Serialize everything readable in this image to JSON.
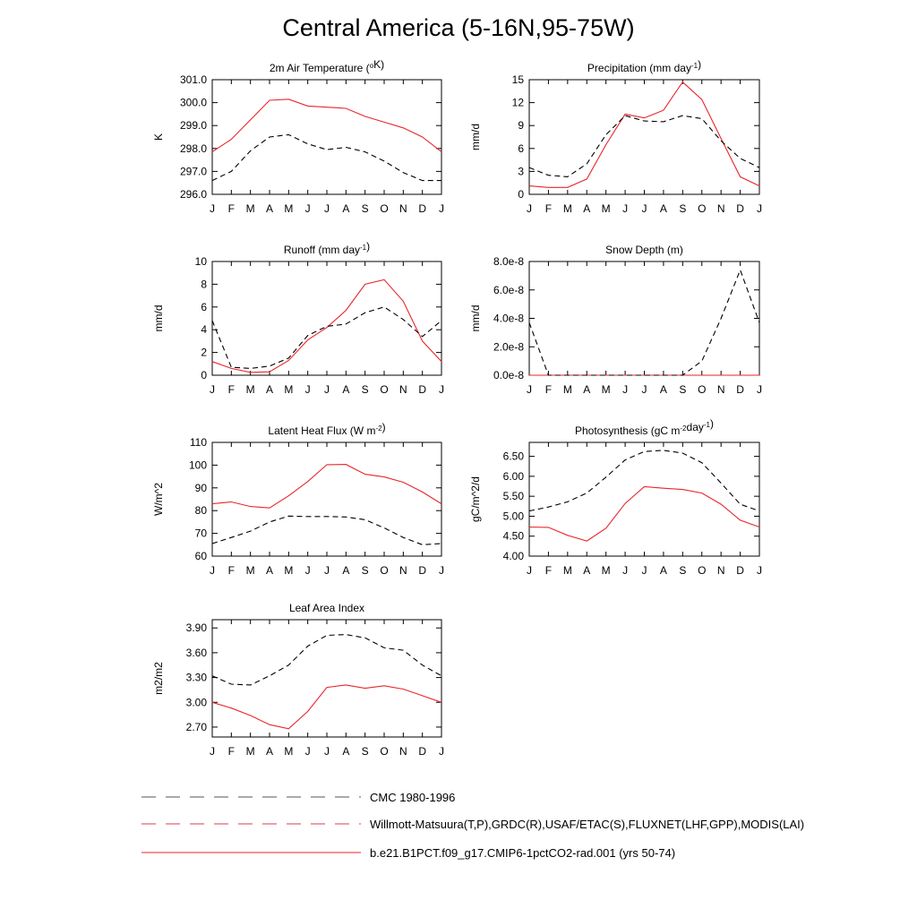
{
  "page": {
    "title": "Central America (5-16N,95-75W)"
  },
  "months": [
    "J",
    "F",
    "M",
    "A",
    "M",
    "J",
    "J",
    "A",
    "S",
    "O",
    "N",
    "D",
    "J"
  ],
  "legend": {
    "items": [
      {
        "label": "CMC 1980-1996",
        "style": "dashed",
        "color": "#000000"
      },
      {
        "label": "Willmott-Matsuura(T,P),GRDC(R),USAF/ETAC(S),FLUXNET(LHF,GPP),MODIS(LAI)",
        "style": "dashed",
        "color": "#000000"
      },
      {
        "label": "b.e21.B1PCT.f09_g17.CMIP6-1pctCO2-rad.001 (yrs 50-74)",
        "style": "solid",
        "color": "#e8262b"
      }
    ]
  },
  "colors": {
    "model": "#e8262b",
    "obs": "#000000"
  },
  "chart_data": [
    {
      "type": "line",
      "title": "2m Air Temperature (",
      "title_sup": "o",
      "title_after": "K)",
      "ylabel": "K",
      "ylim": [
        296.0,
        301.0
      ],
      "yticks": [
        "296.0",
        "297.0",
        "298.0",
        "299.0",
        "300.0",
        "301.0"
      ],
      "ytick_values": [
        296.0,
        297.0,
        298.0,
        299.0,
        300.0,
        301.0
      ],
      "series": [
        {
          "values": [
            297.85,
            298.4,
            299.25,
            300.1,
            300.15,
            299.85,
            299.8,
            299.75,
            299.4,
            299.15,
            298.9,
            298.5,
            297.85
          ],
          "style": "solid"
        },
        {
          "values": [
            296.6,
            297.0,
            297.9,
            298.5,
            298.6,
            298.2,
            297.95,
            298.05,
            297.85,
            297.45,
            296.95,
            296.6,
            296.6
          ],
          "style": "dashed"
        }
      ]
    },
    {
      "type": "line",
      "title": "Precipitation (mm day",
      "title_sup": "-1",
      "title_after": ")",
      "ylabel": "mm/d",
      "ylim": [
        0,
        15
      ],
      "yticks": [
        "0",
        "3",
        "6",
        "9",
        "12",
        "15"
      ],
      "ytick_values": [
        0,
        3,
        6,
        9,
        12,
        15
      ],
      "series": [
        {
          "values": [
            1.1,
            0.9,
            0.9,
            2.0,
            6.5,
            10.5,
            10.0,
            11.0,
            14.7,
            12.4,
            7.3,
            2.3,
            1.1
          ],
          "style": "solid"
        },
        {
          "values": [
            3.5,
            2.5,
            2.3,
            4.0,
            7.8,
            10.3,
            9.6,
            9.5,
            10.3,
            9.9,
            7.0,
            4.7,
            3.5
          ],
          "style": "dashed"
        }
      ]
    },
    {
      "type": "line",
      "title": "Runoff (mm day",
      "title_sup": "-1",
      "title_after": ")",
      "ylabel": "mm/d",
      "ylim": [
        0,
        10
      ],
      "yticks": [
        "0",
        "2",
        "4",
        "6",
        "8",
        "10"
      ],
      "ytick_values": [
        0,
        2,
        4,
        6,
        8,
        10
      ],
      "series": [
        {
          "values": [
            1.2,
            0.6,
            0.25,
            0.3,
            1.3,
            3.1,
            4.2,
            5.7,
            8.0,
            8.4,
            6.5,
            3.0,
            1.2
          ],
          "style": "solid"
        },
        {
          "values": [
            4.8,
            0.7,
            0.6,
            0.8,
            1.5,
            3.5,
            4.3,
            4.5,
            5.5,
            6.0,
            4.9,
            3.4,
            4.8
          ],
          "style": "dashed"
        }
      ]
    },
    {
      "type": "line",
      "title": "Snow Depth (m)",
      "title_sup": "",
      "title_after": "",
      "ylabel": "mm/d",
      "ylim": [
        0,
        8e-08
      ],
      "yticks": [
        "0.0e-8",
        "2.0e-8",
        "4.0e-8",
        "6.0e-8",
        "8.0e-8"
      ],
      "ytick_values": [
        0,
        2e-08,
        4e-08,
        6e-08,
        8e-08
      ],
      "series": [
        {
          "values": [
            0,
            0,
            0,
            0,
            0,
            0,
            0,
            0,
            0,
            0,
            0,
            0,
            0
          ],
          "style": "solid"
        },
        {
          "values": [
            3.7e-08,
            0,
            0,
            0,
            0,
            0,
            0,
            0,
            0,
            1e-08,
            4e-08,
            7.4e-08,
            3.7e-08
          ],
          "style": "dashed"
        }
      ]
    },
    {
      "type": "line",
      "title": "Latent Heat Flux (W m",
      "title_sup": "-2",
      "title_after": ")",
      "ylabel": "W/m^2",
      "ylim": [
        60,
        110
      ],
      "yticks": [
        "60",
        "70",
        "80",
        "90",
        "100",
        "110"
      ],
      "ytick_values": [
        60,
        70,
        80,
        90,
        100,
        110
      ],
      "series": [
        {
          "values": [
            83,
            83.8,
            81.8,
            81.2,
            86.5,
            92.8,
            100.2,
            100.3,
            96,
            94.8,
            92.5,
            88.2,
            83
          ],
          "style": "solid"
        },
        {
          "values": [
            65.5,
            68.2,
            71,
            75,
            77.6,
            77.4,
            77.4,
            77.2,
            76,
            72.4,
            68.2,
            65,
            65.5
          ],
          "style": "dashed"
        }
      ]
    },
    {
      "type": "line",
      "title": "Photosynthesis (gC m",
      "title_sup": "-2",
      "title_after": "day",
      "title_sup2": "-1",
      "title_after2": ")",
      "ylabel": "gC/m^2/d",
      "ylim": [
        4.0,
        6.85
      ],
      "yticks": [
        "4.00",
        "4.50",
        "5.00",
        "5.50",
        "6.00",
        "6.50"
      ],
      "ytick_values": [
        4.0,
        4.5,
        5.0,
        5.5,
        6.0,
        6.5
      ],
      "series": [
        {
          "values": [
            4.73,
            4.72,
            4.52,
            4.38,
            4.7,
            5.32,
            5.74,
            5.7,
            5.67,
            5.58,
            5.3,
            4.9,
            4.73
          ],
          "style": "solid"
        },
        {
          "values": [
            5.13,
            5.23,
            5.36,
            5.58,
            5.98,
            6.41,
            6.62,
            6.65,
            6.58,
            6.34,
            5.83,
            5.3,
            5.13
          ],
          "style": "dashed"
        }
      ]
    },
    {
      "type": "line",
      "title": "Leaf Area Index",
      "title_sup": "",
      "title_after": "",
      "ylabel": "m2/m2",
      "ylim": [
        2.58,
        4.0
      ],
      "yticks": [
        "2.70",
        "3.00",
        "3.30",
        "3.60",
        "3.90"
      ],
      "ytick_values": [
        2.7,
        3.0,
        3.3,
        3.6,
        3.9
      ],
      "series": [
        {
          "values": [
            3.0,
            2.93,
            2.84,
            2.73,
            2.68,
            2.89,
            3.18,
            3.21,
            3.17,
            3.2,
            3.16,
            3.08,
            3.0
          ],
          "style": "solid"
        },
        {
          "values": [
            3.32,
            3.22,
            3.21,
            3.32,
            3.45,
            3.68,
            3.81,
            3.82,
            3.78,
            3.66,
            3.63,
            3.45,
            3.32
          ],
          "style": "dashed"
        }
      ]
    }
  ]
}
